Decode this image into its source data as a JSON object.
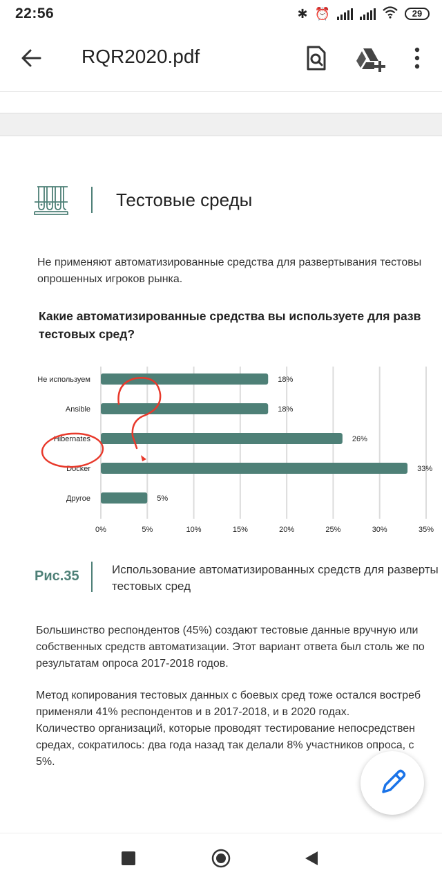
{
  "status": {
    "time": "22:56",
    "battery": "29"
  },
  "app_bar": {
    "title": "RQR2020.pdf",
    "icons": [
      "back-arrow-icon",
      "document-search-icon",
      "drive-add-icon",
      "more-vert-icon"
    ]
  },
  "page": {
    "section_title": "Тестовые среды",
    "intro_lines": [
      "Не применяют автоматизированные средства для развертывания тестовы",
      "опрошенных игроков рынка."
    ],
    "question_lines": [
      "Какие автоматизированные средства вы используете для разв",
      "тестовых сред?"
    ],
    "figure_label": "Рис.35",
    "figure_caption_lines": [
      "Использование автоматизированных средств для разверты",
      "тестовых сред"
    ],
    "paragraph1_lines": [
      "Большинство респондентов (45%) создают тестовые данные вручную или",
      "собственных средств автоматизации. Этот вариант ответа был столь же по",
      "результатам опроса 2017-2018 годов."
    ],
    "paragraph2_lines": [
      "Метод копирования тестовых данных с боевых сред тоже остался востреб",
      "применяли 41% респондентов и в 2017-2018, и в 2020 годах.",
      "Количество организаций, которые проводят тестирование непосредствен",
      "средах, сократилось: два года назад так делали 8% участников опроса, с",
      "5%."
    ]
  },
  "chart_data": {
    "type": "bar",
    "orientation": "horizontal",
    "categories": [
      "Не используем",
      "Ansible",
      "Hibernates",
      "Docker",
      "Другое"
    ],
    "values": [
      18,
      18,
      26,
      33,
      5
    ],
    "value_labels": [
      "18%",
      "18%",
      "26%",
      "33%",
      "5%"
    ],
    "x_ticks": [
      "0%",
      "5%",
      "10%",
      "15%",
      "20%",
      "25%",
      "30%",
      "35%"
    ],
    "xlim": [
      0,
      35
    ],
    "grid": true,
    "bar_color": "#4e8077"
  },
  "colors": {
    "accent": "#4e8077",
    "annotation": "#e8392b"
  }
}
